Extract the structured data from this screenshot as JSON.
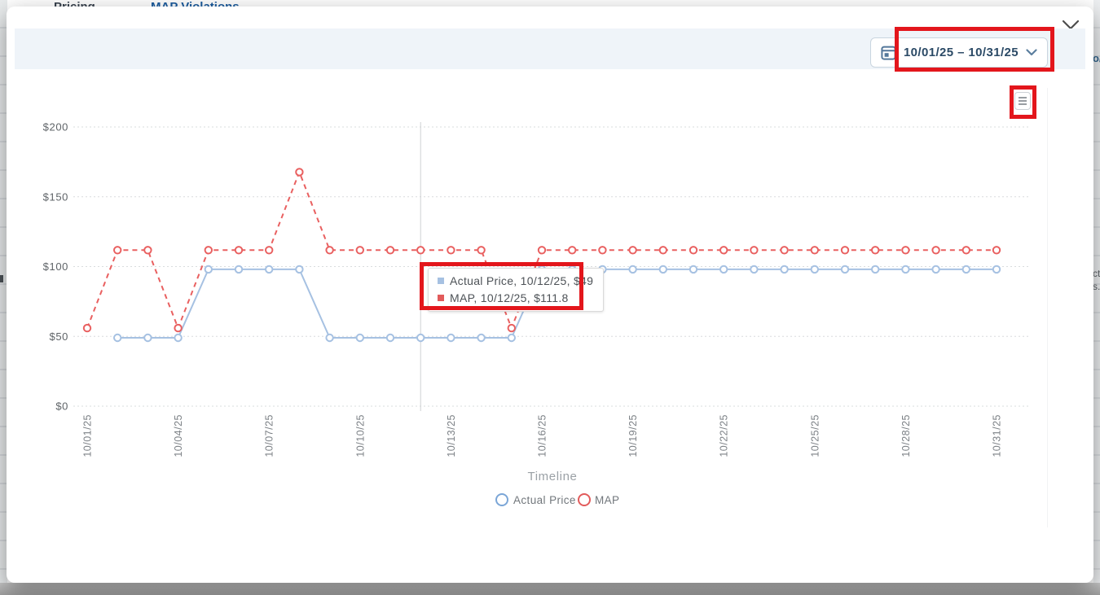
{
  "page_behind": {
    "nav_left_text": "Pricing",
    "nav_tab_text": "MAP Violations",
    "right_fragments": [
      "o/",
      "ct",
      "s."
    ]
  },
  "modal": {
    "date_range_value": "10/01/25 – 10/31/25"
  },
  "tooltip": {
    "rows": [
      {
        "color": "#a6c1e2",
        "text": "Actual Price, 10/12/25, $49"
      },
      {
        "color": "#e25b5b",
        "text": "MAP, 10/12/25, $111.8"
      }
    ]
  },
  "chart_data": {
    "type": "line",
    "title": "",
    "xlabel": "Timeline",
    "ylabel": "",
    "ylim": [
      0,
      200
    ],
    "grid": "dotted-horizontal",
    "legend_position": "bottom",
    "crosshair_date": "10/12/25",
    "y_tick_labels": [
      "$0",
      "$50",
      "$100",
      "$150",
      "$200"
    ],
    "x_tick_labels": [
      "10/01/25",
      "10/04/25",
      "10/07/25",
      "10/10/25",
      "10/13/25",
      "10/16/25",
      "10/19/25",
      "10/22/25",
      "10/25/25",
      "10/28/25",
      "10/31/25"
    ],
    "x": [
      "10/01/25",
      "10/02/25",
      "10/03/25",
      "10/04/25",
      "10/05/25",
      "10/06/25",
      "10/07/25",
      "10/08/25",
      "10/09/25",
      "10/10/25",
      "10/11/25",
      "10/12/25",
      "10/13/25",
      "10/14/25",
      "10/15/25",
      "10/16/25",
      "10/17/25",
      "10/18/25",
      "10/19/25",
      "10/20/25",
      "10/21/25",
      "10/22/25",
      "10/23/25",
      "10/24/25",
      "10/25/25",
      "10/26/25",
      "10/27/25",
      "10/28/25",
      "10/29/25",
      "10/30/25",
      "10/31/25"
    ],
    "series": [
      {
        "name": "Actual Price",
        "color": "#a6c1e2",
        "legend_color": "#7ba6d7",
        "dash": "solid",
        "values": [
          null,
          49,
          49,
          49,
          98,
          98,
          98,
          98,
          49,
          49,
          49,
          49,
          49,
          49,
          49,
          98,
          98,
          98,
          98,
          98,
          98,
          98,
          98,
          98,
          98,
          98,
          98,
          98,
          98,
          98,
          98
        ]
      },
      {
        "name": "MAP",
        "color": "#e96060",
        "legend_color": "#e25b5b",
        "dash": "dashed",
        "values": [
          55.9,
          111.8,
          111.8,
          55.9,
          111.8,
          111.8,
          111.8,
          167.7,
          111.8,
          111.8,
          111.8,
          111.8,
          111.8,
          111.8,
          55.9,
          111.8,
          111.8,
          111.8,
          111.8,
          111.8,
          111.8,
          111.8,
          111.8,
          111.8,
          111.8,
          111.8,
          111.8,
          111.8,
          111.8,
          111.8,
          111.8
        ]
      }
    ]
  },
  "annotation_color": "#e3161c"
}
